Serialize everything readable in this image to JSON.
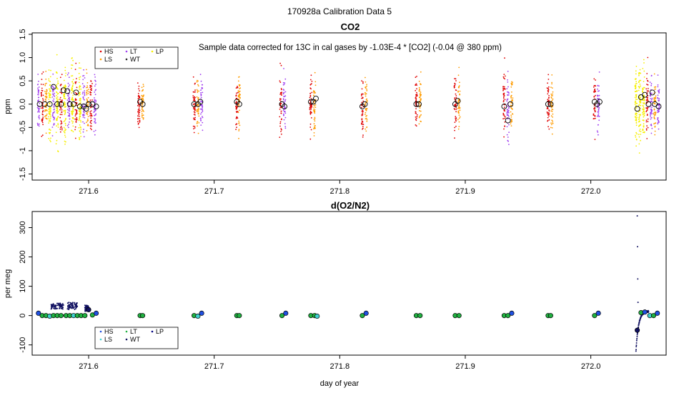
{
  "page_title": "170928a   Calibration Data 5",
  "x_axis_label": "day of year",
  "colors": {
    "HS": "#e00000",
    "LS": "#ff9c00",
    "LT": "#a040f0",
    "WT": "#202020",
    "LP": "#f6f000",
    "o2_HS": "#2050e0",
    "o2_LS": "#40d0d0",
    "o2_LT": "#20b040",
    "o2_WT": "#101060",
    "o2_LP": "#000080"
  },
  "chart_data": [
    {
      "type": "scatter",
      "title": "CO2",
      "ylabel": "ppm",
      "xlim": [
        271.555,
        272.06
      ],
      "ylim": [
        -1.6,
        1.5
      ],
      "x_ticks": [
        271.6,
        271.7,
        271.8,
        271.9,
        272.0
      ],
      "x_tick_labels": [
        "271.6",
        "271.7",
        "271.8",
        "271.9",
        "272.0"
      ],
      "y_ticks": [
        -1.5,
        -1.0,
        -0.5,
        0.0,
        0.5,
        1.0,
        1.5
      ],
      "y_tick_labels": [
        "-1.5",
        "-1",
        "-0.5",
        "0.0",
        "0.5",
        "1.0",
        "1.5"
      ],
      "annotation": "Sample data corrected for 13C in cal gases by -1.03E-4 * [CO2] (-0.04 @ 380 ppm)",
      "legend": {
        "entries": [
          "HS",
          "LS",
          "LT",
          "WT",
          "LP"
        ],
        "placement": "top-left"
      },
      "calibration_means": [
        {
          "x": 271.561,
          "y": 0.0
        },
        {
          "x": 271.565,
          "y": 0.0
        },
        {
          "x": 271.569,
          "y": 0.0
        },
        {
          "x": 271.572,
          "y": 0.37
        },
        {
          "x": 271.575,
          "y": 0.0
        },
        {
          "x": 271.578,
          "y": 0.0
        },
        {
          "x": 271.58,
          "y": 0.3
        },
        {
          "x": 271.583,
          "y": 0.28
        },
        {
          "x": 271.585,
          "y": 0.0
        },
        {
          "x": 271.588,
          "y": 0.0
        },
        {
          "x": 271.59,
          "y": 0.25
        },
        {
          "x": 271.593,
          "y": -0.05
        },
        {
          "x": 271.596,
          "y": -0.05
        },
        {
          "x": 271.598,
          "y": -0.1
        },
        {
          "x": 271.6,
          "y": 0.0
        },
        {
          "x": 271.603,
          "y": 0.0
        },
        {
          "x": 271.606,
          "y": -0.05
        },
        {
          "x": 271.641,
          "y": 0.05
        },
        {
          "x": 271.643,
          "y": 0.0
        },
        {
          "x": 271.684,
          "y": 0.0
        },
        {
          "x": 271.687,
          "y": 0.0
        },
        {
          "x": 271.689,
          "y": 0.05
        },
        {
          "x": 271.718,
          "y": 0.05
        },
        {
          "x": 271.72,
          "y": 0.0
        },
        {
          "x": 271.754,
          "y": 0.0
        },
        {
          "x": 271.756,
          "y": -0.05
        },
        {
          "x": 271.777,
          "y": 0.05
        },
        {
          "x": 271.779,
          "y": 0.05
        },
        {
          "x": 271.781,
          "y": 0.12
        },
        {
          "x": 271.818,
          "y": -0.05
        },
        {
          "x": 271.82,
          "y": 0.0
        },
        {
          "x": 271.861,
          "y": 0.0
        },
        {
          "x": 271.863,
          "y": 0.0
        },
        {
          "x": 271.892,
          "y": 0.0
        },
        {
          "x": 271.894,
          "y": 0.07
        },
        {
          "x": 271.931,
          "y": -0.05
        },
        {
          "x": 271.934,
          "y": -0.35
        },
        {
          "x": 271.936,
          "y": 0.0
        },
        {
          "x": 271.966,
          "y": 0.0
        },
        {
          "x": 271.968,
          "y": 0.0
        },
        {
          "x": 272.003,
          "y": 0.05
        },
        {
          "x": 272.005,
          "y": 0.0
        },
        {
          "x": 272.007,
          "y": 0.05
        },
        {
          "x": 272.037,
          "y": -0.1
        },
        {
          "x": 272.04,
          "y": 0.15
        },
        {
          "x": 272.043,
          "y": 0.2
        },
        {
          "x": 272.046,
          "y": 0.0
        },
        {
          "x": 272.049,
          "y": 0.25
        },
        {
          "x": 272.051,
          "y": 0.0
        },
        {
          "x": 272.054,
          "y": -0.05
        }
      ],
      "raw_point_bursts": [
        {
          "x": 271.56,
          "spread": 0.28,
          "gas": "LT"
        },
        {
          "x": 271.563,
          "spread": 0.3,
          "gas": "HS"
        },
        {
          "x": 271.566,
          "spread": 0.3,
          "gas": "LS"
        },
        {
          "x": 271.569,
          "spread": 0.35,
          "gas": "LP"
        },
        {
          "x": 271.572,
          "spread": 0.3,
          "gas": "LT"
        },
        {
          "x": 271.575,
          "spread": 0.4,
          "gas": "LP"
        },
        {
          "x": 271.578,
          "spread": 0.35,
          "gas": "HS"
        },
        {
          "x": 271.581,
          "spread": 0.4,
          "gas": "LP"
        },
        {
          "x": 271.584,
          "spread": 0.3,
          "gas": "LT"
        },
        {
          "x": 271.587,
          "spread": 0.4,
          "gas": "LP"
        },
        {
          "x": 271.59,
          "spread": 0.35,
          "gas": "HS"
        },
        {
          "x": 271.593,
          "spread": 0.4,
          "gas": "LP"
        },
        {
          "x": 271.596,
          "spread": 0.3,
          "gas": "LT"
        },
        {
          "x": 271.599,
          "spread": 0.3,
          "gas": "LS"
        },
        {
          "x": 271.602,
          "spread": 0.28,
          "gas": "HS"
        },
        {
          "x": 271.605,
          "spread": 0.28,
          "gas": "LT"
        },
        {
          "x": 271.64,
          "spread": 0.25,
          "gas": "HS"
        },
        {
          "x": 271.643,
          "spread": 0.25,
          "gas": "LS"
        },
        {
          "x": 271.684,
          "spread": 0.3,
          "gas": "HS"
        },
        {
          "x": 271.687,
          "spread": 0.3,
          "gas": "LS"
        },
        {
          "x": 271.69,
          "spread": 0.28,
          "gas": "LT"
        },
        {
          "x": 271.718,
          "spread": 0.28,
          "gas": "HS"
        },
        {
          "x": 271.72,
          "spread": 0.28,
          "gas": "LS"
        },
        {
          "x": 271.753,
          "spread": 0.3,
          "gas": "HS"
        },
        {
          "x": 271.756,
          "spread": 0.3,
          "gas": "LT"
        },
        {
          "x": 271.777,
          "spread": 0.3,
          "gas": "HS"
        },
        {
          "x": 271.78,
          "spread": 0.28,
          "gas": "LS"
        },
        {
          "x": 271.818,
          "spread": 0.3,
          "gas": "HS"
        },
        {
          "x": 271.821,
          "spread": 0.3,
          "gas": "LS"
        },
        {
          "x": 271.861,
          "spread": 0.3,
          "gas": "HS"
        },
        {
          "x": 271.864,
          "spread": 0.28,
          "gas": "LS"
        },
        {
          "x": 271.892,
          "spread": 0.28,
          "gas": "HS"
        },
        {
          "x": 271.895,
          "spread": 0.28,
          "gas": "LS"
        },
        {
          "x": 271.931,
          "spread": 0.35,
          "gas": "HS"
        },
        {
          "x": 271.934,
          "spread": 0.35,
          "gas": "LT"
        },
        {
          "x": 271.937,
          "spread": 0.28,
          "gas": "LS"
        },
        {
          "x": 271.966,
          "spread": 0.32,
          "gas": "HS"
        },
        {
          "x": 271.969,
          "spread": 0.28,
          "gas": "LS"
        },
        {
          "x": 272.003,
          "spread": 0.3,
          "gas": "HS"
        },
        {
          "x": 272.006,
          "spread": 0.3,
          "gas": "LT"
        },
        {
          "x": 272.036,
          "spread": 0.4,
          "gas": "LP"
        },
        {
          "x": 272.039,
          "spread": 0.4,
          "gas": "LP"
        },
        {
          "x": 272.042,
          "spread": 0.35,
          "gas": "LP"
        },
        {
          "x": 272.045,
          "spread": 0.35,
          "gas": "HS"
        },
        {
          "x": 272.048,
          "spread": 0.3,
          "gas": "LT"
        },
        {
          "x": 272.051,
          "spread": 0.3,
          "gas": "LS"
        },
        {
          "x": 272.054,
          "spread": 0.28,
          "gas": "LT"
        }
      ]
    },
    {
      "type": "scatter",
      "title": "d(O2/N2)",
      "ylabel": "per meg",
      "xlabel": "day of year",
      "xlim": [
        271.555,
        272.06
      ],
      "ylim": [
        -130,
        350
      ],
      "x_ticks": [
        271.6,
        271.7,
        271.8,
        271.9,
        272.0
      ],
      "x_tick_labels": [
        "271.6",
        "271.7",
        "271.8",
        "271.9",
        "272.0"
      ],
      "y_ticks": [
        -100,
        0,
        100,
        200,
        300
      ],
      "y_tick_labels": [
        "-100",
        "0",
        "100",
        "200",
        "300"
      ],
      "legend": {
        "entries": [
          "HS",
          "LS",
          "LT",
          "WT",
          "LP"
        ],
        "placement": "bottom-left"
      },
      "calibration_means": [
        {
          "x": 271.56,
          "y": 8,
          "gas": "HS"
        },
        {
          "x": 271.563,
          "y": 0,
          "gas": "LT"
        },
        {
          "x": 271.566,
          "y": 0,
          "gas": "LT"
        },
        {
          "x": 271.569,
          "y": -2,
          "gas": "LS"
        },
        {
          "x": 271.572,
          "y": 0,
          "gas": "LT"
        },
        {
          "x": 271.575,
          "y": 0,
          "gas": "LT"
        },
        {
          "x": 271.578,
          "y": 0,
          "gas": "LT"
        },
        {
          "x": 271.582,
          "y": 0,
          "gas": "LT"
        },
        {
          "x": 271.585,
          "y": 0,
          "gas": "LT"
        },
        {
          "x": 271.588,
          "y": 0,
          "gas": "LS"
        },
        {
          "x": 271.591,
          "y": 0,
          "gas": "LT"
        },
        {
          "x": 271.594,
          "y": 0,
          "gas": "LT"
        },
        {
          "x": 271.597,
          "y": 0,
          "gas": "LT"
        },
        {
          "x": 271.6,
          "y": 20,
          "gas": "WT"
        },
        {
          "x": 271.603,
          "y": 2,
          "gas": "LT"
        },
        {
          "x": 271.606,
          "y": 8,
          "gas": "HS"
        },
        {
          "x": 271.641,
          "y": 0,
          "gas": "LT"
        },
        {
          "x": 271.643,
          "y": 0,
          "gas": "LT"
        },
        {
          "x": 271.684,
          "y": 0,
          "gas": "LT"
        },
        {
          "x": 271.687,
          "y": -2,
          "gas": "LS"
        },
        {
          "x": 271.69,
          "y": 8,
          "gas": "HS"
        },
        {
          "x": 271.718,
          "y": 0,
          "gas": "LT"
        },
        {
          "x": 271.72,
          "y": 0,
          "gas": "LT"
        },
        {
          "x": 271.754,
          "y": 0,
          "gas": "LT"
        },
        {
          "x": 271.757,
          "y": 8,
          "gas": "HS"
        },
        {
          "x": 271.777,
          "y": 0,
          "gas": "LT"
        },
        {
          "x": 271.78,
          "y": 0,
          "gas": "LT"
        },
        {
          "x": 271.782,
          "y": -2,
          "gas": "LS"
        },
        {
          "x": 271.818,
          "y": 0,
          "gas": "LT"
        },
        {
          "x": 271.821,
          "y": 8,
          "gas": "HS"
        },
        {
          "x": 271.861,
          "y": 0,
          "gas": "LT"
        },
        {
          "x": 271.864,
          "y": 0,
          "gas": "LT"
        },
        {
          "x": 271.892,
          "y": 0,
          "gas": "LT"
        },
        {
          "x": 271.895,
          "y": 0,
          "gas": "LT"
        },
        {
          "x": 271.931,
          "y": 0,
          "gas": "LT"
        },
        {
          "x": 271.934,
          "y": 0,
          "gas": "LT"
        },
        {
          "x": 271.937,
          "y": 8,
          "gas": "HS"
        },
        {
          "x": 271.966,
          "y": 0,
          "gas": "LT"
        },
        {
          "x": 271.968,
          "y": 0,
          "gas": "LT"
        },
        {
          "x": 272.003,
          "y": 0,
          "gas": "LT"
        },
        {
          "x": 272.006,
          "y": 8,
          "gas": "HS"
        },
        {
          "x": 272.037,
          "y": -50,
          "gas": "WT"
        },
        {
          "x": 272.04,
          "y": 10,
          "gas": "LT"
        },
        {
          "x": 272.043,
          "y": 12,
          "gas": "HS"
        },
        {
          "x": 272.047,
          "y": 0,
          "gas": "LS"
        },
        {
          "x": 272.05,
          "y": 0,
          "gas": "LT"
        },
        {
          "x": 272.053,
          "y": 8,
          "gas": "HS"
        }
      ],
      "wt_segments": [
        {
          "x0": 271.57,
          "x1": 271.58,
          "y_low": 22,
          "y_high": 42
        },
        {
          "x0": 271.583,
          "x1": 271.591,
          "y_low": 20,
          "y_high": 45
        },
        {
          "x0": 271.597,
          "x1": 271.601,
          "y_low": 15,
          "y_high": 35
        }
      ],
      "wt_recovery": {
        "x_start": 272.036,
        "x_end": 272.046,
        "y_start": -122,
        "y_end": 15
      },
      "wt_spikes": [
        {
          "x": 272.037,
          "y": 340
        },
        {
          "x": 272.0372,
          "y": 235
        },
        {
          "x": 272.0374,
          "y": 125
        },
        {
          "x": 272.0376,
          "y": 45
        }
      ]
    }
  ]
}
